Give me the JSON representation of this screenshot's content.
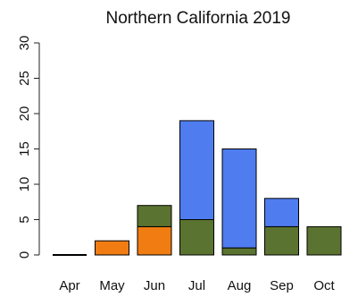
{
  "chart_data": {
    "type": "bar",
    "stacked": true,
    "title": "Northern California 2019",
    "xlabel": "",
    "ylabel": "",
    "categories": [
      "Apr",
      "May",
      "Jun",
      "Jul",
      "Aug",
      "Sep",
      "Oct"
    ],
    "ylim": [
      0,
      30
    ],
    "yticks": [
      0,
      5,
      10,
      15,
      20,
      25,
      30
    ],
    "grid": false,
    "legend": "none",
    "series": [
      {
        "color": "#f07c12",
        "values": [
          0,
          2,
          4,
          0,
          0,
          0,
          0
        ]
      },
      {
        "color": "#5b7330",
        "values": [
          0,
          0,
          3,
          5,
          1,
          4,
          4
        ]
      },
      {
        "color": "#4f7df0",
        "values": [
          0,
          0,
          0,
          14,
          14,
          4,
          0
        ]
      }
    ]
  }
}
